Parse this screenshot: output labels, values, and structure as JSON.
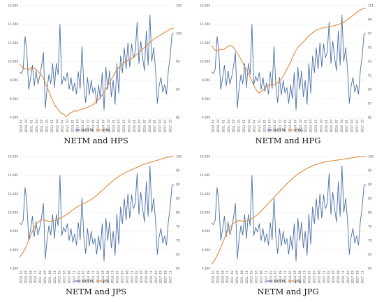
{
  "chart_data": [
    {
      "type": "line",
      "caption": "NETM and HPS",
      "legend_position": "bottom-center",
      "grid": true,
      "left_axis": {
        "ylim": [
          4000,
          16000
        ],
        "ticks": [
          "4,000",
          "6,000",
          "8,000",
          "10,000",
          "12,000",
          "14,000",
          "16,000"
        ]
      },
      "right_axis": {
        "ylim": [
          85,
          105
        ],
        "ticks": [
          "85",
          "90",
          "95",
          "100",
          "105"
        ]
      },
      "x_ticks": [
        "2010. 07",
        "2010. 10",
        "2011. 01",
        "2011. 04",
        "2011. 07",
        "2011. 10",
        "2012. 01",
        "2012. 04",
        "2012. 07",
        "2012. 10",
        "2013. 01",
        "2013. 04",
        "2013. 07",
        "2013. 10",
        "2014. 01",
        "2014. 04",
        "2014. 07",
        "2014. 10",
        "2015. 01",
        "2015. 04",
        "2015. 07",
        "2015. 10",
        "2016. 01",
        "2016. 04",
        "2016. 07",
        "2016. 10",
        "2017. 01",
        "2017. 04",
        "2017. 07",
        "2017. 10"
      ],
      "series": [
        {
          "name": "NETM",
          "axis": "left",
          "color": "#4a6fa5",
          "values": [
            8900,
            8700,
            9200,
            12700,
            11000,
            7000,
            8200,
            9600,
            7400,
            9000,
            7600,
            8400,
            9500,
            11000,
            5000,
            7100,
            8600,
            7600,
            9800,
            7200,
            9800,
            8600,
            14000,
            7500,
            8400,
            7900,
            8800,
            7000,
            8300,
            6800,
            7700,
            6500,
            8900,
            7100,
            11600,
            7400,
            5600,
            8300,
            6400,
            8000,
            6600,
            7200,
            5500,
            7500,
            6000,
            8800,
            4800,
            9400,
            7000,
            9000,
            6200,
            8000,
            5400,
            9800,
            6600,
            10600,
            8800,
            11500,
            9200,
            12000,
            9400,
            11900,
            10400,
            11000,
            14200,
            9800,
            12200,
            10400,
            9000,
            13300,
            9600,
            15000,
            10000,
            11500,
            9200,
            5500,
            7400,
            8300,
            6700,
            7500,
            6500,
            9000,
            10600,
            12900,
            13000
          ]
        },
        {
          "name": "HPS",
          "axis": "right",
          "color": "#e08a3c",
          "values": [
            94.5,
            94.2,
            93.8,
            93.6,
            93.8,
            93.5,
            93.9,
            93.7,
            93.9,
            93.5,
            93.3,
            92.8,
            92.5,
            92.0,
            91.2,
            90.4,
            89.6,
            88.8,
            88.0,
            87.4,
            86.8,
            86.4,
            86.0,
            85.7,
            85.6,
            85.2,
            85.3,
            85.6,
            85.9,
            86.0,
            86.2,
            86.1,
            86.3,
            86.4,
            86.5,
            86.5,
            86.7,
            86.8,
            87.0,
            87.1,
            87.3,
            87.6,
            87.9,
            88.2,
            88.6,
            89.0,
            89.5,
            90.0,
            90.6,
            91.2,
            91.8,
            92.4,
            93.0,
            93.5,
            93.9,
            94.2,
            94.5,
            94.8,
            95.0,
            95.2,
            95.4,
            95.5,
            95.7,
            96.0,
            96.3,
            96.6,
            96.9,
            97.2,
            97.5,
            97.8,
            98.1,
            98.4,
            98.7,
            99.0,
            99.2,
            99.4,
            99.6,
            99.8,
            100.0,
            100.2,
            100.4,
            100.6,
            100.8,
            100.9,
            101.0
          ]
        }
      ]
    },
    {
      "type": "line",
      "caption": "NETM and HPG",
      "legend_position": "bottom-center",
      "grid": true,
      "left_axis": {
        "ylim": [
          4000,
          16000
        ],
        "ticks": [
          "4,000",
          "6,000",
          "8,000",
          "10,000",
          "12,000",
          "14,000",
          "16,000"
        ]
      },
      "right_axis": {
        "ylim": [
          85,
          101
        ],
        "ticks": [
          "85",
          "87",
          "89",
          "91",
          "93",
          "95",
          "97",
          "99",
          "101"
        ]
      },
      "x_ticks": [
        "2010. 07",
        "2010. 10",
        "2011. 01",
        "2011. 04",
        "2011. 07",
        "2011. 10",
        "2012. 01",
        "2012. 04",
        "2012. 07",
        "2012. 10",
        "2013. 01",
        "2013. 04",
        "2013. 07",
        "2013. 10",
        "2014. 01",
        "2014. 04",
        "2014. 07",
        "2014. 10",
        "2015. 01",
        "2015. 04",
        "2015. 07",
        "2015. 10",
        "2016. 01",
        "2016. 04",
        "2016. 07",
        "2016. 10",
        "2017. 01",
        "2017. 04",
        "2017. 07",
        "2017. 10"
      ],
      "series": [
        {
          "name": "NETM",
          "axis": "left",
          "color": "#4a6fa5",
          "values": [
            8900,
            8700,
            9200,
            12700,
            11000,
            7000,
            8200,
            9600,
            7400,
            9000,
            7600,
            8400,
            9500,
            11000,
            5000,
            7100,
            8600,
            7600,
            9800,
            7200,
            9800,
            8600,
            14000,
            7500,
            8400,
            7900,
            8800,
            7000,
            8300,
            6800,
            7700,
            6500,
            8900,
            7100,
            11600,
            7400,
            5600,
            8300,
            6400,
            8000,
            6600,
            7200,
            5500,
            7500,
            6000,
            8800,
            4800,
            9400,
            7000,
            9000,
            6200,
            8000,
            5400,
            9800,
            6600,
            10600,
            8800,
            11500,
            9200,
            12000,
            9400,
            11900,
            10400,
            11000,
            14200,
            9800,
            12200,
            10400,
            9000,
            13300,
            9600,
            15000,
            10000,
            11500,
            9200,
            5500,
            7400,
            8300,
            6700,
            7500,
            6500,
            9000,
            10600,
            12900,
            13000
          ]
        },
        {
          "name": "HPG",
          "axis": "right",
          "color": "#e08a3c",
          "values": [
            95.3,
            94.9,
            94.6,
            94.5,
            94.6,
            94.8,
            94.7,
            94.8,
            95.0,
            95.2,
            95.3,
            95.2,
            95.0,
            94.6,
            94.2,
            93.8,
            93.3,
            92.8,
            92.3,
            91.8,
            91.3,
            90.8,
            90.2,
            89.6,
            89.1,
            88.7,
            88.5,
            88.7,
            88.9,
            89.1,
            89.4,
            89.5,
            89.7,
            89.6,
            89.7,
            89.8,
            90.0,
            90.2,
            90.5,
            90.9,
            91.4,
            91.9,
            92.4,
            92.9,
            93.5,
            94.1,
            94.6,
            95.0,
            95.3,
            95.6,
            95.8,
            96.1,
            96.4,
            96.7,
            96.9,
            97.1,
            97.3,
            97.5,
            97.6,
            97.7,
            97.8,
            97.8,
            97.9,
            97.9,
            98.0,
            98.0,
            98.1,
            98.1,
            98.2,
            98.3,
            98.4,
            98.5,
            98.6,
            98.8,
            99.0,
            99.2,
            99.4,
            99.6,
            99.8,
            100.0,
            100.2,
            100.4,
            100.5,
            100.6,
            100.6
          ]
        }
      ]
    },
    {
      "type": "line",
      "caption": "NETM and JPS",
      "legend_position": "bottom-center",
      "grid": true,
      "left_axis": {
        "ylim": [
          4000,
          16000
        ],
        "ticks": [
          "4,000",
          "6,000",
          "8,000",
          "10,000",
          "12,000",
          "14,000",
          "16,000"
        ]
      },
      "right_axis": {
        "ylim": [
          60,
          100
        ],
        "ticks": [
          "60",
          "65",
          "70",
          "75",
          "80",
          "85",
          "90",
          "95",
          "100"
        ]
      },
      "x_ticks": [
        "2010. 02",
        "2010. 05",
        "2010. 08",
        "2010. 11",
        "2011. 02",
        "2011. 05",
        "2011. 08",
        "2011. 11",
        "2012. 02",
        "2012. 05",
        "2012. 08",
        "2012. 11",
        "2013. 02",
        "2013. 05",
        "2013. 08",
        "2013. 11",
        "2014. 02",
        "2014. 05",
        "2014. 08",
        "2014. 11",
        "2015. 02",
        "2015. 05",
        "2015. 08",
        "2015. 11",
        "2016. 02",
        "2016. 05",
        "2016. 08",
        "2016. 11",
        "2017. 02",
        "2017. 05",
        "2017. 08",
        "2017. 11"
      ],
      "series": [
        {
          "name": "NETM",
          "axis": "left",
          "color": "#4a6fa5",
          "values": [
            8900,
            8700,
            9200,
            12700,
            11000,
            7000,
            8200,
            9600,
            7400,
            9000,
            7600,
            8400,
            9500,
            11000,
            5000,
            7100,
            8600,
            7600,
            9800,
            7200,
            9800,
            8600,
            14000,
            7500,
            8400,
            7900,
            8800,
            7000,
            8300,
            6800,
            7700,
            6500,
            8900,
            7100,
            11600,
            7400,
            5600,
            8300,
            6400,
            8000,
            6600,
            7200,
            5500,
            7500,
            6000,
            8800,
            4800,
            9400,
            7000,
            9000,
            6200,
            8000,
            5400,
            9800,
            6600,
            10600,
            8800,
            11500,
            9200,
            12000,
            9400,
            11900,
            10400,
            11000,
            14200,
            9800,
            12200,
            10400,
            9000,
            13300,
            9600,
            15000,
            10000,
            11500,
            9200,
            5500,
            7400,
            8300,
            6700,
            7500,
            6500,
            9000,
            10600,
            12900,
            13000
          ]
        },
        {
          "name": "JPS",
          "axis": "right",
          "color": "#e08a3c",
          "values": [
            64.0,
            64.8,
            65.8,
            67.0,
            68.4,
            70.0,
            71.6,
            73.2,
            74.6,
            75.8,
            76.6,
            77.0,
            77.3,
            77.4,
            77.2,
            77.0,
            76.8,
            76.8,
            77.0,
            77.2,
            77.4,
            77.6,
            77.9,
            78.2,
            78.6,
            79.0,
            79.4,
            79.9,
            80.4,
            80.9,
            81.4,
            81.9,
            82.3,
            82.6,
            82.9,
            83.2,
            83.5,
            83.9,
            84.3,
            84.7,
            85.1,
            85.6,
            86.1,
            86.7,
            87.3,
            87.9,
            88.5,
            89.1,
            89.7,
            90.3,
            90.9,
            91.4,
            91.9,
            92.4,
            92.9,
            93.3,
            93.7,
            94.1,
            94.4,
            94.7,
            95.0,
            95.3,
            95.6,
            95.9,
            96.2,
            96.5,
            96.8,
            97.1,
            97.3,
            97.5,
            97.7,
            97.9,
            98.1,
            98.3,
            98.5,
            98.7,
            98.9,
            99.1,
            99.3,
            99.5,
            99.7,
            99.8,
            99.9,
            100.0,
            100.0
          ]
        }
      ]
    },
    {
      "type": "line",
      "caption": "NETM and JPG",
      "legend_position": "bottom-center",
      "grid": true,
      "left_axis": {
        "ylim": [
          4000,
          16000
        ],
        "ticks": [
          "4,000",
          "6,000",
          "8,000",
          "10,000",
          "12,000",
          "14,000",
          "16,000"
        ]
      },
      "right_axis": {
        "ylim": [
          60,
          100
        ],
        "ticks": [
          "60",
          "65",
          "70",
          "75",
          "80",
          "85",
          "90",
          "95",
          "100"
        ]
      },
      "x_ticks": [
        "2010. 02",
        "2010. 05",
        "2010. 08",
        "2010. 11",
        "2011. 02",
        "2011. 05",
        "2011. 08",
        "2011. 11",
        "2012. 02",
        "2012. 05",
        "2012. 08",
        "2012. 11",
        "2013. 02",
        "2013. 05",
        "2013. 08",
        "2013. 11",
        "2014. 02",
        "2014. 05",
        "2014. 08",
        "2014. 11",
        "2015. 02",
        "2015. 05",
        "2015. 08",
        "2015. 11",
        "2016. 02",
        "2016. 05",
        "2016. 08",
        "2016. 11",
        "2017. 02",
        "2017. 05",
        "2017. 08",
        "2017. 11"
      ],
      "series": [
        {
          "name": "NETM",
          "axis": "left",
          "color": "#4a6fa5",
          "values": [
            8900,
            8700,
            9200,
            12700,
            11000,
            7000,
            8200,
            9600,
            7400,
            9000,
            7600,
            8400,
            9500,
            11000,
            5000,
            7100,
            8600,
            7600,
            9800,
            7200,
            9800,
            8600,
            14000,
            7500,
            8400,
            7900,
            8800,
            7000,
            8300,
            6800,
            7700,
            6500,
            8900,
            7100,
            11600,
            7400,
            5600,
            8300,
            6400,
            8000,
            6600,
            7200,
            5500,
            7500,
            6000,
            8800,
            4800,
            9400,
            7000,
            9000,
            6200,
            8000,
            5400,
            9800,
            6600,
            10600,
            8800,
            11500,
            9200,
            12000,
            9400,
            11900,
            10400,
            11000,
            14200,
            9800,
            12200,
            10400,
            9000,
            13300,
            9600,
            15000,
            10000,
            11500,
            9200,
            5500,
            7400,
            8300,
            6700,
            7500,
            6500,
            9000,
            10600,
            12900,
            13000
          ]
        },
        {
          "name": "JPG",
          "axis": "right",
          "color": "#e08a3c",
          "values": [
            61.5,
            62.3,
            63.3,
            64.6,
            66.0,
            67.5,
            69.1,
            70.7,
            72.2,
            73.5,
            74.6,
            75.5,
            76.2,
            76.7,
            77.0,
            77.1,
            77.0,
            76.9,
            76.9,
            77.0,
            77.2,
            77.5,
            77.8,
            78.2,
            78.7,
            79.2,
            79.8,
            80.5,
            81.2,
            81.9,
            82.6,
            83.3,
            84.0,
            84.7,
            85.4,
            86.1,
            86.8,
            87.5,
            88.2,
            88.9,
            89.6,
            90.3,
            90.9,
            91.5,
            92.1,
            92.7,
            93.2,
            93.7,
            94.2,
            94.6,
            95.0,
            95.4,
            95.8,
            96.1,
            96.4,
            96.7,
            97.0,
            97.2,
            97.4,
            97.6,
            97.8,
            98.0,
            98.1,
            98.2,
            98.3,
            98.4,
            98.5,
            98.6,
            98.7,
            98.8,
            98.9,
            99.0,
            99.1,
            99.2,
            99.3,
            99.4,
            99.5,
            99.6,
            99.7,
            99.8,
            99.9,
            99.9,
            100.0,
            100.0,
            100.0
          ]
        }
      ]
    }
  ]
}
